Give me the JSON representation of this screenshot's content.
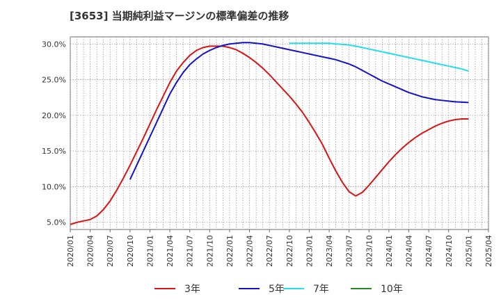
{
  "chart_data": {
    "type": "line",
    "title": "[3653]  当期純利益マージンの標準偏差の推移",
    "xlabel": "",
    "ylabel": "",
    "ylim": [
      4.0,
      31.0
    ],
    "yticks": [
      5.0,
      10.0,
      15.0,
      20.0,
      25.0,
      30.0
    ],
    "ytick_labels": [
      "5.0%",
      "10.0%",
      "15.0%",
      "20.0%",
      "25.0%",
      "30.0%"
    ],
    "xticks": [
      "2020/01",
      "2020/04",
      "2020/07",
      "2020/10",
      "2021/01",
      "2021/04",
      "2021/07",
      "2021/10",
      "2022/01",
      "2022/04",
      "2022/07",
      "2022/10",
      "2023/01",
      "2023/04",
      "2023/07",
      "2023/10",
      "2024/01",
      "2024/04",
      "2024/07",
      "2024/10",
      "2025/01",
      "2025/04"
    ],
    "grid": true,
    "legend_position": "bottom",
    "series": [
      {
        "name": "3年",
        "color": "#dd1111",
        "points": [
          [
            "2020/01",
            4.7
          ],
          [
            "2020/02",
            5.0
          ],
          [
            "2020/03",
            5.2
          ],
          [
            "2020/04",
            5.4
          ],
          [
            "2020/05",
            5.9
          ],
          [
            "2020/06",
            6.8
          ],
          [
            "2020/07",
            8.0
          ],
          [
            "2020/08",
            9.5
          ],
          [
            "2020/09",
            11.2
          ],
          [
            "2020/10",
            13.0
          ],
          [
            "2020/11",
            14.9
          ],
          [
            "2020/12",
            16.8
          ],
          [
            "2021/01",
            18.8
          ],
          [
            "2021/02",
            20.8
          ],
          [
            "2021/03",
            22.7
          ],
          [
            "2021/04",
            24.6
          ],
          [
            "2021/05",
            26.2
          ],
          [
            "2021/06",
            27.4
          ],
          [
            "2021/07",
            28.4
          ],
          [
            "2021/08",
            29.1
          ],
          [
            "2021/09",
            29.5
          ],
          [
            "2021/10",
            29.7
          ],
          [
            "2021/11",
            29.7
          ],
          [
            "2021/12",
            29.7
          ],
          [
            "2022/01",
            29.5
          ],
          [
            "2022/02",
            29.2
          ],
          [
            "2022/03",
            28.7
          ],
          [
            "2022/04",
            28.1
          ],
          [
            "2022/05",
            27.4
          ],
          [
            "2022/06",
            26.6
          ],
          [
            "2022/07",
            25.7
          ],
          [
            "2022/08",
            24.7
          ],
          [
            "2022/09",
            23.7
          ],
          [
            "2022/10",
            22.7
          ],
          [
            "2022/11",
            21.6
          ],
          [
            "2022/12",
            20.4
          ],
          [
            "2023/01",
            19.0
          ],
          [
            "2023/02",
            17.5
          ],
          [
            "2023/03",
            15.9
          ],
          [
            "2023/04",
            14.0
          ],
          [
            "2023/05",
            12.2
          ],
          [
            "2023/06",
            10.6
          ],
          [
            "2023/07",
            9.3
          ],
          [
            "2023/08",
            8.7
          ],
          [
            "2023/09",
            9.2
          ],
          [
            "2023/10",
            10.2
          ],
          [
            "2023/11",
            11.3
          ],
          [
            "2023/12",
            12.4
          ],
          [
            "2024/01",
            13.5
          ],
          [
            "2024/02",
            14.5
          ],
          [
            "2024/03",
            15.4
          ],
          [
            "2024/04",
            16.2
          ],
          [
            "2024/05",
            16.9
          ],
          [
            "2024/06",
            17.5
          ],
          [
            "2024/07",
            18.0
          ],
          [
            "2024/08",
            18.5
          ],
          [
            "2024/09",
            18.9
          ],
          [
            "2024/10",
            19.2
          ],
          [
            "2024/11",
            19.4
          ],
          [
            "2024/12",
            19.5
          ],
          [
            "2025/01",
            19.5
          ]
        ]
      },
      {
        "name": "5年",
        "color": "#1111cc",
        "points": [
          [
            "2020/10",
            11.0
          ],
          [
            "2020/11",
            13.0
          ],
          [
            "2020/12",
            15.0
          ],
          [
            "2021/01",
            17.0
          ],
          [
            "2021/02",
            19.0
          ],
          [
            "2021/03",
            21.0
          ],
          [
            "2021/04",
            23.0
          ],
          [
            "2021/05",
            24.6
          ],
          [
            "2021/06",
            26.0
          ],
          [
            "2021/07",
            27.1
          ],
          [
            "2021/08",
            27.9
          ],
          [
            "2021/09",
            28.6
          ],
          [
            "2021/10",
            29.1
          ],
          [
            "2021/11",
            29.5
          ],
          [
            "2021/12",
            29.8
          ],
          [
            "2022/01",
            30.0
          ],
          [
            "2022/02",
            30.1
          ],
          [
            "2022/03",
            30.2
          ],
          [
            "2022/04",
            30.2
          ],
          [
            "2022/05",
            30.1
          ],
          [
            "2022/06",
            30.0
          ],
          [
            "2022/07",
            29.8
          ],
          [
            "2022/08",
            29.6
          ],
          [
            "2022/09",
            29.4
          ],
          [
            "2022/10",
            29.2
          ],
          [
            "2022/11",
            29.0
          ],
          [
            "2022/12",
            28.8
          ],
          [
            "2023/01",
            28.6
          ],
          [
            "2023/02",
            28.4
          ],
          [
            "2023/03",
            28.2
          ],
          [
            "2023/04",
            28.0
          ],
          [
            "2023/05",
            27.8
          ],
          [
            "2023/06",
            27.5
          ],
          [
            "2023/07",
            27.2
          ],
          [
            "2023/08",
            26.8
          ],
          [
            "2023/09",
            26.3
          ],
          [
            "2023/10",
            25.8
          ],
          [
            "2023/11",
            25.3
          ],
          [
            "2023/12",
            24.8
          ],
          [
            "2024/01",
            24.4
          ],
          [
            "2024/02",
            24.0
          ],
          [
            "2024/03",
            23.6
          ],
          [
            "2024/04",
            23.2
          ],
          [
            "2024/05",
            22.9
          ],
          [
            "2024/06",
            22.6
          ],
          [
            "2024/07",
            22.4
          ],
          [
            "2024/08",
            22.2
          ],
          [
            "2024/09",
            22.1
          ],
          [
            "2024/10",
            22.0
          ],
          [
            "2024/11",
            21.9
          ],
          [
            "2024/12",
            21.85
          ],
          [
            "2025/01",
            21.8
          ]
        ]
      },
      {
        "name": "7年",
        "color": "#22ddee",
        "points": [
          [
            "2022/10",
            30.1
          ],
          [
            "2022/11",
            30.1
          ],
          [
            "2022/12",
            30.1
          ],
          [
            "2023/01",
            30.1
          ],
          [
            "2023/02",
            30.1
          ],
          [
            "2023/03",
            30.1
          ],
          [
            "2023/04",
            30.1
          ],
          [
            "2023/05",
            30.0
          ],
          [
            "2023/06",
            29.95
          ],
          [
            "2023/07",
            29.85
          ],
          [
            "2023/08",
            29.7
          ],
          [
            "2023/09",
            29.5
          ],
          [
            "2023/10",
            29.3
          ],
          [
            "2023/11",
            29.1
          ],
          [
            "2023/12",
            28.9
          ],
          [
            "2024/01",
            28.7
          ],
          [
            "2024/02",
            28.5
          ],
          [
            "2024/03",
            28.3
          ],
          [
            "2024/04",
            28.1
          ],
          [
            "2024/05",
            27.9
          ],
          [
            "2024/06",
            27.7
          ],
          [
            "2024/07",
            27.5
          ],
          [
            "2024/08",
            27.3
          ],
          [
            "2024/09",
            27.1
          ],
          [
            "2024/10",
            26.9
          ],
          [
            "2024/11",
            26.7
          ],
          [
            "2024/12",
            26.5
          ],
          [
            "2025/01",
            26.2
          ]
        ]
      },
      {
        "name": "10年",
        "color": "#228822",
        "points": []
      }
    ]
  }
}
